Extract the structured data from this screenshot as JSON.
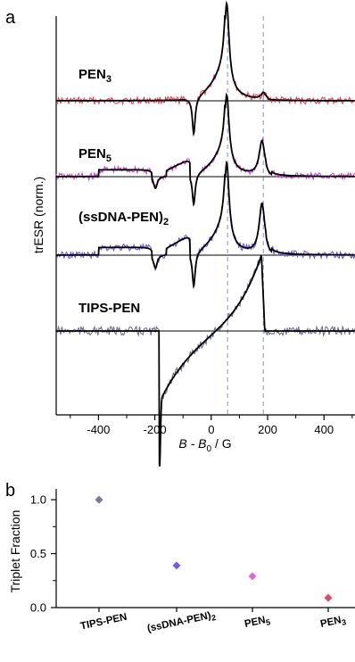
{
  "chart_data": [
    {
      "panel": "a",
      "type": "line",
      "xlabel": "B - B0 / G",
      "xlabel_parts": {
        "main": "B - B",
        "sub": "0",
        "unit": " / G"
      },
      "ylabel": "trESR (norm.)",
      "xlim": [
        -550,
        510
      ],
      "xticks": [
        -400,
        -200,
        0,
        200,
        400
      ],
      "xtick_labels": [
        "-400",
        "-200",
        "0",
        "200",
        "400"
      ],
      "grid": false,
      "reference_lines_x": [
        58,
        185
      ],
      "traces": [
        {
          "label_parts": {
            "main": "PEN",
            "sub": "3",
            "tail": ""
          },
          "data_color": "#e8435e",
          "shape": "pen3"
        },
        {
          "label_parts": {
            "main": "PEN",
            "sub": "5",
            "tail": ""
          },
          "data_color": "#cc44c8",
          "shape": "pen5"
        },
        {
          "label_parts": {
            "main": "(ssDNA-PEN)",
            "sub": "2",
            "tail": ""
          },
          "data_color": "#6d54d8",
          "shape": "ssdna"
        },
        {
          "label_parts": {
            "main": "TIPS-PEN",
            "sub": "",
            "tail": ""
          },
          "data_color": "#6f6f8f",
          "shape": "tips"
        }
      ],
      "fit_color": "#000000"
    },
    {
      "panel": "b",
      "type": "scatter",
      "ylabel": "Triplet Fraction",
      "ylim": [
        0,
        1.1
      ],
      "yticks": [
        0.0,
        0.5,
        1.0
      ],
      "ytick_labels": [
        "0.0",
        "0.5",
        "1.0"
      ],
      "categories": [
        {
          "main": "TIPS-PEN",
          "sub": ""
        },
        {
          "main": "(ssDNA-PEN)",
          "sub": "2"
        },
        {
          "main": "PEN",
          "sub": "5"
        },
        {
          "main": "PEN",
          "sub": "3"
        }
      ],
      "values": [
        1.0,
        0.39,
        0.29,
        0.09
      ],
      "colors": [
        "#77779a",
        "#7a5be0",
        "#d86ad6",
        "#e4456a"
      ]
    }
  ]
}
